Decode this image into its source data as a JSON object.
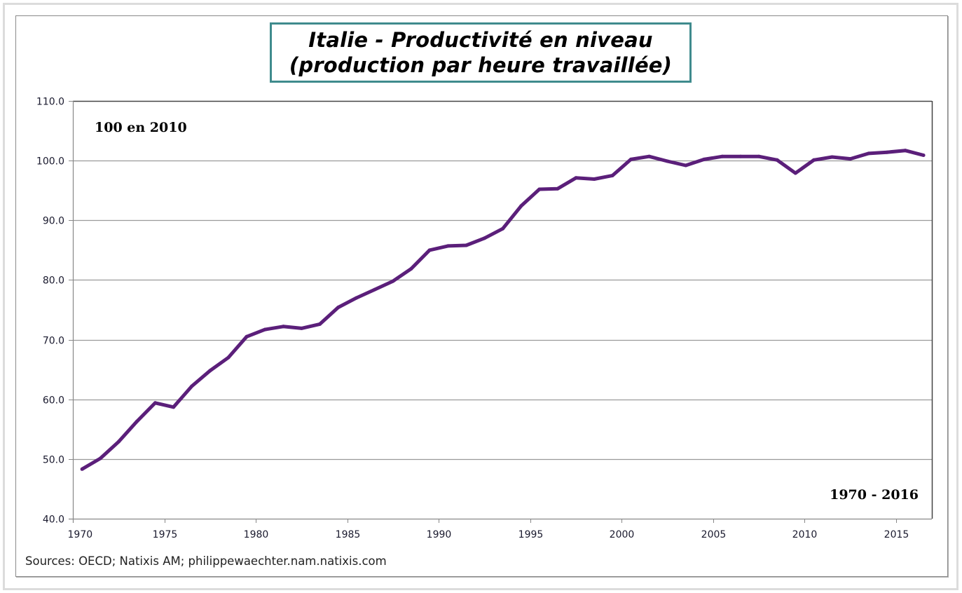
{
  "chart_data": {
    "type": "line",
    "title": "Italie - Productivité en niveau",
    "subtitle": "(production par heure travaillée)",
    "xlabel": "",
    "ylabel": "",
    "x_tick_labels": [
      "1970",
      "1975",
      "1980",
      "1985",
      "1990",
      "1995",
      "2000",
      "2005",
      "2010",
      "2015"
    ],
    "x_ticks": [
      1970,
      1975,
      1980,
      1985,
      1990,
      1995,
      2000,
      2005,
      2010,
      2015
    ],
    "xlim": [
      1970,
      2017
    ],
    "y_tick_labels": [
      "40.0",
      "50.0",
      "60.0",
      "70.0",
      "80.0",
      "90.0",
      "100.0",
      "110.0"
    ],
    "y_ticks": [
      40,
      50,
      60,
      70,
      80,
      90,
      100,
      110
    ],
    "ylim": [
      40,
      110
    ],
    "grid": true,
    "annotations": [
      "100 en 2010",
      "1970 - 2016"
    ],
    "series": [
      {
        "name": "Productivité (100 en 2010)",
        "color": "#5b1f7a",
        "x": [
          1970,
          1971,
          1972,
          1973,
          1974,
          1975,
          1976,
          1977,
          1978,
          1979,
          1980,
          1981,
          1982,
          1983,
          1984,
          1985,
          1986,
          1987,
          1988,
          1989,
          1990,
          1991,
          1992,
          1993,
          1994,
          1995,
          1996,
          1997,
          1998,
          1999,
          2000,
          2001,
          2002,
          2003,
          2004,
          2005,
          2006,
          2007,
          2008,
          2009,
          2010,
          2011,
          2012,
          2013,
          2014,
          2015,
          2016
        ],
        "values": [
          48.3,
          50.1,
          52.9,
          56.3,
          59.4,
          58.7,
          62.2,
          64.8,
          67.0,
          70.5,
          71.7,
          72.2,
          71.9,
          72.6,
          75.4,
          77.0,
          78.4,
          79.8,
          81.9,
          85.0,
          85.7,
          85.8,
          87.0,
          88.6,
          92.4,
          95.2,
          95.3,
          97.1,
          96.9,
          97.5,
          100.2,
          100.7,
          99.9,
          99.2,
          100.2,
          100.7,
          100.7,
          100.7,
          100.1,
          97.9,
          100.1,
          100.6,
          100.3,
          101.2,
          101.4,
          101.7,
          100.9
        ]
      }
    ]
  },
  "source": "Sources: OECD; Natixis AM; philippewaechter.nam.natixis.com",
  "colors": {
    "line": "#5b1f7a",
    "title_border": "#3f8b8d",
    "grid": "#9a9a9a"
  }
}
